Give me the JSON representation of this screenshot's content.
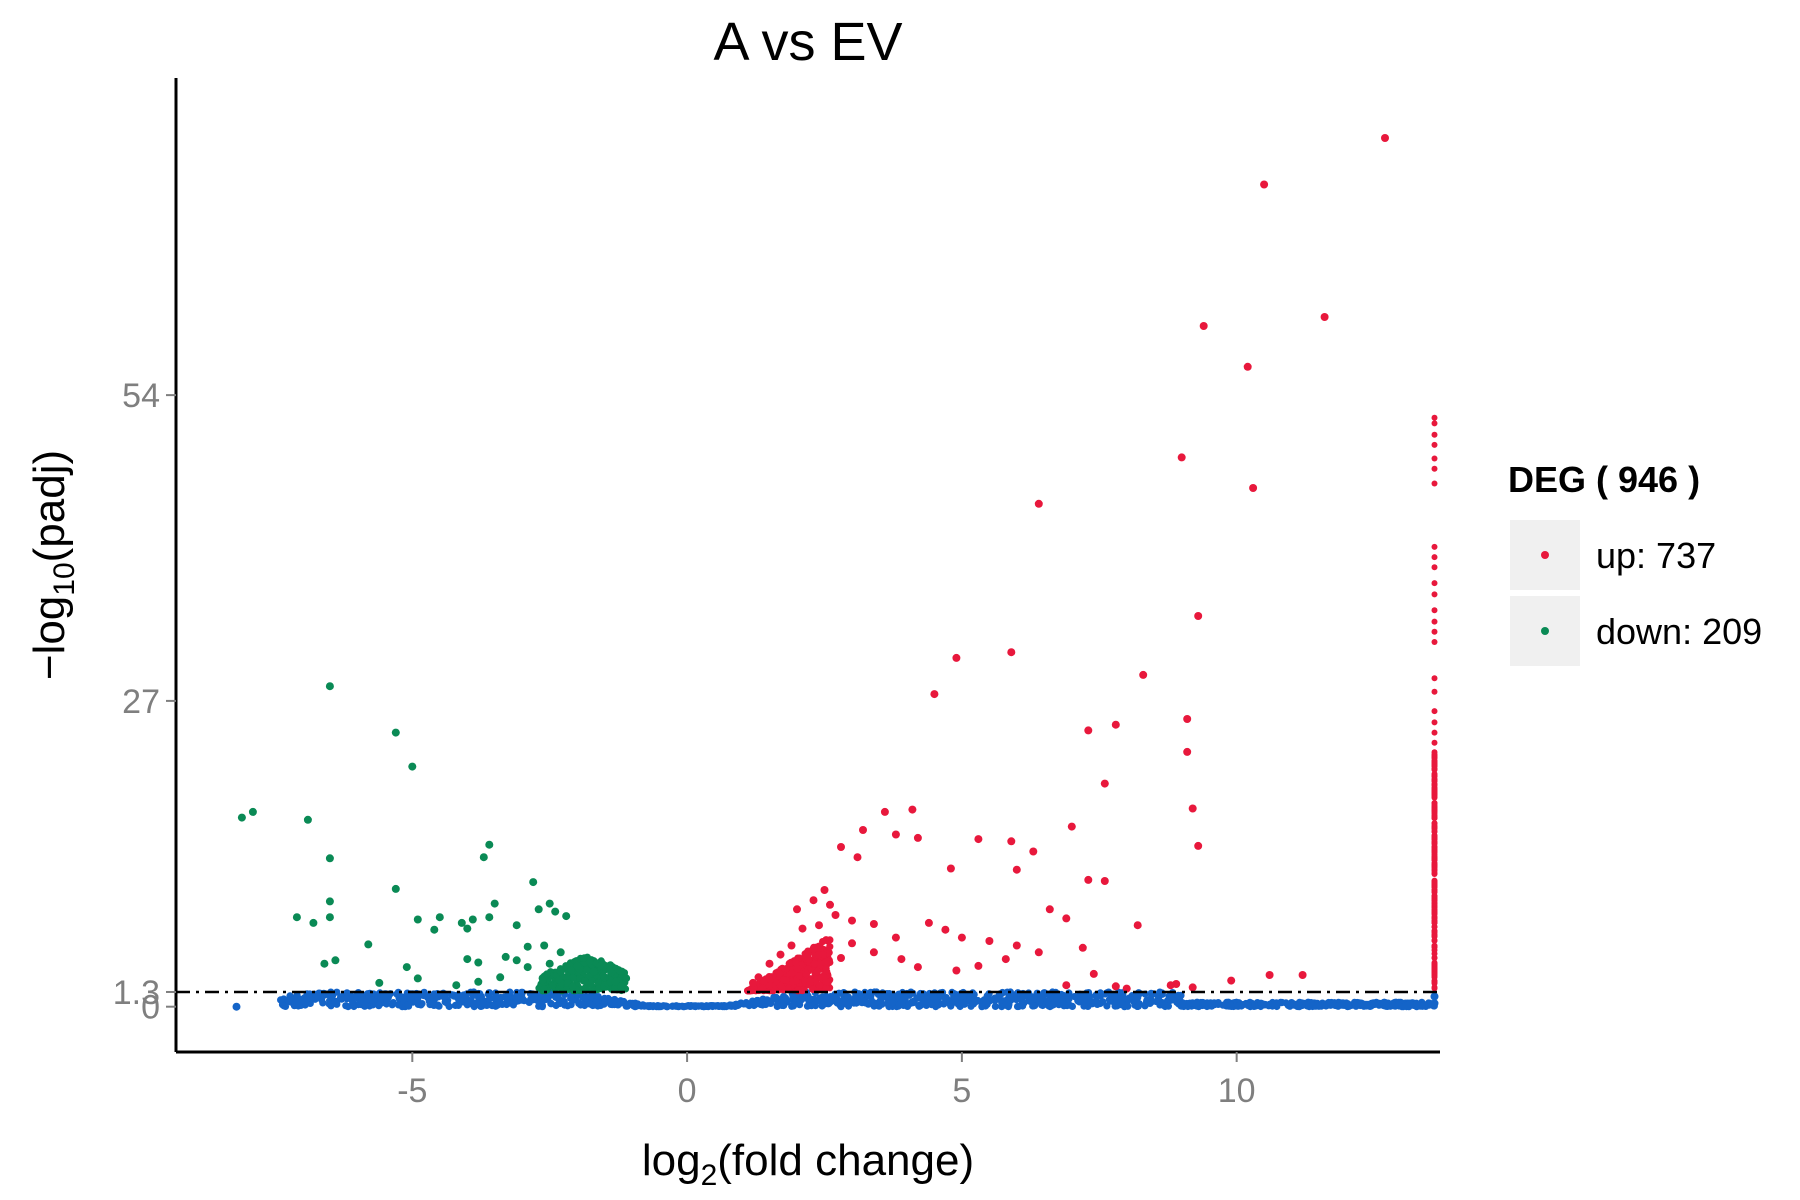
{
  "chart_data": {
    "type": "scatter",
    "title": "A vs EV",
    "xlabel": {
      "pre": "log",
      "sub": "2",
      "post": "(fold change)"
    },
    "ylabel": {
      "pre": "−log",
      "sub": "10",
      "post": "(padj)"
    },
    "xlim": [
      -9.3,
      13.7
    ],
    "ylim": [
      -4,
      82
    ],
    "xticks": [
      {
        "value": -5,
        "label": "-5"
      },
      {
        "value": 0,
        "label": "0"
      },
      {
        "value": 5,
        "label": "5"
      },
      {
        "value": 10,
        "label": "10"
      }
    ],
    "yticks": [
      {
        "value": 0,
        "label": "0"
      },
      {
        "value": 1.3,
        "label": "1.3"
      },
      {
        "value": 27,
        "label": "27"
      },
      {
        "value": 54,
        "label": "54"
      }
    ],
    "threshold_y": 1.3,
    "legend": {
      "title_pre": "DEG ( ",
      "title_count": "946",
      "title_post": " )",
      "position": "right"
    },
    "colors": {
      "up": "#e8183c",
      "down": "#0a8a55",
      "nodiff": "#1464c8"
    },
    "series": [
      {
        "name": "up: 737",
        "color": "#e8183c",
        "points": [
          [
            12.7,
            76.7
          ],
          [
            10.5,
            72.6
          ],
          [
            11.6,
            60.9
          ],
          [
            9.4,
            60.1
          ],
          [
            10.2,
            56.5
          ],
          [
            9.0,
            48.5
          ],
          [
            10.3,
            45.8
          ],
          [
            6.4,
            44.4
          ],
          [
            9.3,
            34.5
          ],
          [
            4.9,
            30.8
          ],
          [
            5.9,
            31.3
          ],
          [
            8.3,
            29.3
          ],
          [
            4.5,
            27.6
          ],
          [
            7.8,
            24.9
          ],
          [
            7.3,
            24.4
          ],
          [
            9.1,
            25.4
          ],
          [
            9.1,
            22.5
          ],
          [
            7.6,
            19.7
          ],
          [
            9.2,
            17.5
          ],
          [
            7.0,
            15.9
          ],
          [
            9.3,
            14.2
          ],
          [
            3.6,
            17.2
          ],
          [
            4.1,
            17.4
          ],
          [
            3.2,
            15.6
          ],
          [
            3.8,
            15.2
          ],
          [
            4.2,
            14.9
          ],
          [
            5.3,
            14.8
          ],
          [
            5.9,
            14.6
          ],
          [
            6.3,
            13.7
          ],
          [
            2.8,
            14.1
          ],
          [
            3.1,
            13.2
          ],
          [
            4.8,
            12.2
          ],
          [
            6.0,
            12.1
          ],
          [
            7.3,
            11.2
          ],
          [
            7.6,
            11.1
          ],
          [
            8.2,
            7.2
          ],
          [
            9.9,
            2.3
          ],
          [
            10.6,
            2.8
          ],
          [
            11.2,
            2.8
          ],
          [
            8.9,
            2.0
          ],
          [
            8.8,
            1.9
          ],
          [
            9.2,
            1.7
          ],
          [
            7.8,
            1.8
          ],
          [
            6.9,
            1.9
          ],
          [
            7.4,
            2.9
          ],
          [
            8.0,
            1.6
          ],
          [
            2.5,
            10.3
          ],
          [
            2.3,
            9.4
          ],
          [
            2.0,
            8.6
          ],
          [
            2.6,
            9.0
          ],
          [
            2.7,
            8.1
          ],
          [
            3.0,
            7.6
          ],
          [
            3.4,
            7.3
          ],
          [
            2.4,
            7.2
          ],
          [
            2.1,
            6.9
          ],
          [
            3.8,
            6.1
          ],
          [
            4.4,
            7.4
          ],
          [
            4.7,
            6.8
          ],
          [
            5.0,
            6.1
          ],
          [
            5.5,
            5.8
          ],
          [
            6.0,
            5.4
          ],
          [
            6.6,
            8.6
          ],
          [
            6.9,
            7.8
          ],
          [
            7.2,
            5.2
          ],
          [
            6.4,
            4.8
          ],
          [
            5.8,
            4.2
          ],
          [
            5.3,
            3.6
          ],
          [
            4.9,
            3.2
          ],
          [
            4.2,
            3.5
          ],
          [
            3.9,
            4.2
          ],
          [
            3.4,
            4.8
          ],
          [
            3.0,
            5.6
          ],
          [
            2.8,
            4.3
          ],
          [
            2.3,
            5.1
          ],
          [
            1.9,
            5.4
          ],
          [
            1.7,
            4.6
          ],
          [
            1.5,
            3.8
          ],
          [
            1.3,
            2.6
          ],
          [
            1.2,
            2.1
          ]
        ]
      },
      {
        "name": "down: 209",
        "color": "#0a8a55",
        "points": [
          [
            -6.5,
            28.3
          ],
          [
            -5.3,
            24.2
          ],
          [
            -5.0,
            21.2
          ],
          [
            -8.1,
            16.7
          ],
          [
            -7.9,
            17.2
          ],
          [
            -6.9,
            16.5
          ],
          [
            -6.5,
            13.1
          ],
          [
            -3.6,
            14.3
          ],
          [
            -3.7,
            13.2
          ],
          [
            -2.8,
            11.0
          ],
          [
            -5.3,
            10.4
          ],
          [
            -7.1,
            7.9
          ],
          [
            -6.8,
            7.4
          ],
          [
            -6.5,
            7.9
          ],
          [
            -6.5,
            9.3
          ],
          [
            -4.9,
            7.7
          ],
          [
            -4.6,
            6.8
          ],
          [
            -4.5,
            7.9
          ],
          [
            -4.0,
            6.9
          ],
          [
            -4.1,
            7.4
          ],
          [
            -3.9,
            7.7
          ],
          [
            -3.6,
            7.9
          ],
          [
            -3.5,
            9.1
          ],
          [
            -3.1,
            7.2
          ],
          [
            -2.5,
            9.1
          ],
          [
            -2.7,
            8.6
          ],
          [
            -2.4,
            8.4
          ],
          [
            -2.2,
            8.0
          ],
          [
            -5.8,
            5.5
          ],
          [
            -6.6,
            3.8
          ],
          [
            -6.4,
            4.1
          ],
          [
            -5.1,
            3.5
          ],
          [
            -4.9,
            2.5
          ],
          [
            -5.6,
            2.1
          ],
          [
            -4.0,
            4.2
          ],
          [
            -3.8,
            3.9
          ],
          [
            -3.3,
            4.4
          ],
          [
            -3.1,
            4.1
          ],
          [
            -2.9,
            5.3
          ],
          [
            -2.6,
            5.4
          ],
          [
            -2.3,
            4.8
          ],
          [
            -2.0,
            3.6
          ],
          [
            -1.7,
            3.1
          ],
          [
            -1.5,
            2.6
          ],
          [
            -1.3,
            2.2
          ],
          [
            -1.2,
            1.8
          ],
          [
            -2.5,
            3.8
          ],
          [
            -2.9,
            3.5
          ],
          [
            -3.4,
            2.6
          ],
          [
            -3.8,
            2.2
          ],
          [
            -4.2,
            1.9
          ]
        ]
      },
      {
        "name": "",
        "color": "#1464c8",
        "points": [
          [
            -8.2,
            0.0
          ],
          [
            -7.1,
            0.5
          ],
          [
            -6.3,
            0.8
          ],
          [
            -5.5,
            1.1
          ],
          [
            -4.6,
            0.7
          ],
          [
            -3.6,
            1.2
          ],
          [
            5.0,
            0.3
          ],
          [
            5.6,
            0.6
          ],
          [
            6.5,
            1.2
          ],
          [
            7.8,
            0.2
          ],
          [
            8.8,
            0.6
          ],
          [
            13.6,
            0.9
          ],
          [
            13.6,
            0.3
          ]
        ]
      }
    ],
    "nodiff_band": {
      "x_start": -7.4,
      "x_end": 13.6,
      "y_top_max": 1.3
    },
    "right_edge_column": {
      "x": 13.6,
      "y_values": [
        52.0,
        51.5,
        50.5,
        49.6,
        48.4,
        47.5,
        46.2,
        40.6,
        39.7,
        38.8,
        37.4,
        36.4,
        35.0,
        34.0,
        33.1,
        32.2,
        29.0,
        27.8,
        26.1,
        25.1,
        24.2,
        23.3,
        22.0,
        21.0,
        20.0,
        19.0,
        17.8,
        16.7,
        15.5,
        14.5,
        13.3,
        12.0,
        10.9,
        9.8,
        8.6,
        7.4,
        6.2,
        5.0,
        3.8,
        2.6
      ]
    }
  }
}
